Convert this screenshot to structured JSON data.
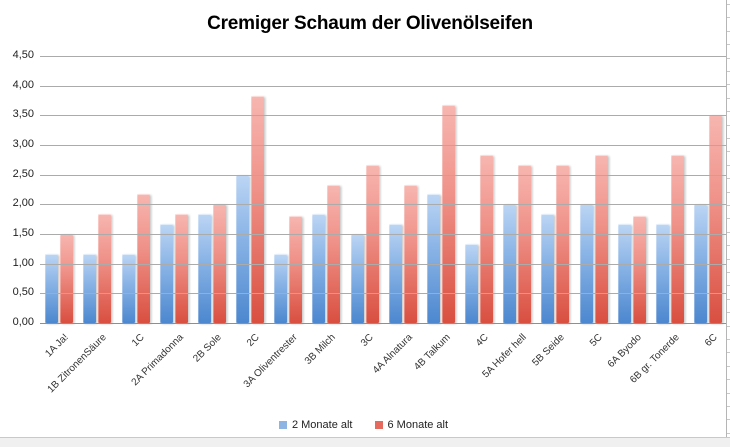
{
  "chart": {
    "title": "Cremiger Schaum der Olivenölseifen",
    "legend_items": [
      {
        "label": "2 Monate alt",
        "swatch_color": "#8db4e2"
      },
      {
        "label": "6 Monate alt",
        "swatch_color": "#e66a5d"
      }
    ]
  },
  "chart_data": {
    "type": "bar",
    "title": "Cremiger Schaum der Olivenölseifen",
    "categories": [
      "1A Ja!",
      "1B ZitronenSäure",
      "1C",
      "2A Primadonna",
      "2B Sole",
      "2C",
      "3A Oliventrester",
      "3B Milch",
      "3C",
      "4A Alnatura",
      "4B Talkum",
      "4C",
      "5A Hofer hell",
      "5B Seide",
      "5C",
      "6A Byodo",
      "6B gr. Tonerde",
      "6C"
    ],
    "series": [
      {
        "name": "2 Monate alt",
        "color_top": "#bcd5f4",
        "color_bottom": "#4c87cf",
        "values": [
          1.17,
          1.17,
          1.17,
          1.67,
          1.83,
          2.5,
          1.17,
          1.83,
          1.5,
          1.67,
          2.17,
          1.33,
          2.0,
          1.83,
          2.0,
          1.67,
          1.67,
          2.0
        ]
      },
      {
        "name": "6 Monate alt",
        "color_top": "#f7b6b0",
        "color_bottom": "#d94f40",
        "values": [
          1.5,
          1.83,
          2.17,
          1.83,
          2.0,
          3.83,
          1.8,
          2.33,
          2.67,
          2.33,
          3.67,
          2.83,
          2.67,
          2.67,
          2.83,
          1.8,
          2.83,
          3.5
        ]
      }
    ],
    "ylim": [
      0,
      4.5
    ],
    "ytick_step": 0.5,
    "ytick_labels": [
      "0,00",
      "0,50",
      "1,00",
      "1,50",
      "2,00",
      "2,50",
      "3,00",
      "3,50",
      "4,00",
      "4,50"
    ],
    "grid": true,
    "gridlines_drawn_over_bars": true,
    "legend_position": "bottom"
  }
}
